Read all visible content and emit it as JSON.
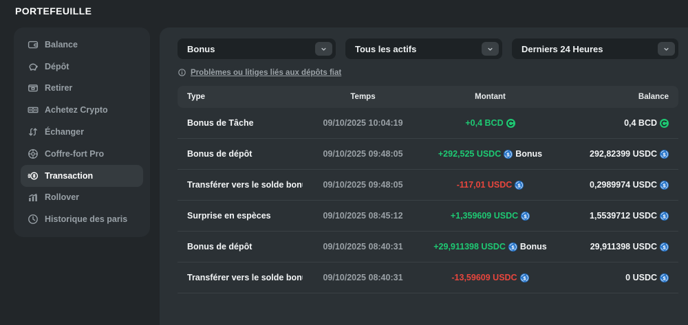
{
  "page": {
    "title": "PORTEFEUILLE"
  },
  "sidebar": {
    "items": [
      {
        "label": "Balance",
        "icon": "wallet-icon",
        "active": false
      },
      {
        "label": "Dépôt",
        "icon": "piggy-bank-icon",
        "active": false
      },
      {
        "label": "Retirer",
        "icon": "withdraw-icon",
        "active": false
      },
      {
        "label": "Achetez Crypto",
        "icon": "banknote-icon",
        "active": false
      },
      {
        "label": "Échanger",
        "icon": "swap-icon",
        "active": false
      },
      {
        "label": "Coffre-fort Pro",
        "icon": "vault-icon",
        "active": false
      },
      {
        "label": "Transaction",
        "icon": "coin-icon",
        "active": true
      },
      {
        "label": "Rollover",
        "icon": "chart-icon",
        "active": false
      },
      {
        "label": "Historique des paris",
        "icon": "clock-icon",
        "active": false
      }
    ]
  },
  "filters": {
    "type": {
      "value": "Bonus"
    },
    "asset": {
      "value": "Tous les actifs"
    },
    "time": {
      "value": "Derniers 24 Heures"
    }
  },
  "notice": {
    "link_text": "Problèmes ou litiges liés aux dépôts fiat"
  },
  "table": {
    "columns": {
      "type": "Type",
      "time": "Temps",
      "amount": "Montant",
      "balance": "Balance"
    },
    "rows": [
      {
        "type": "Bonus de Tâche",
        "time": "09/10/2025 10:04:19",
        "amount": "+0,4 BCD",
        "direction": "positive",
        "asset": "BCD",
        "tag": "",
        "balance": "0,4 BCD",
        "balance_asset": "BCD"
      },
      {
        "type": "Bonus de dépôt",
        "time": "09/10/2025 09:48:05",
        "amount": "+292,525 USDC",
        "direction": "positive",
        "asset": "USDC",
        "tag": "Bonus",
        "balance": "292,82399 USDC",
        "balance_asset": "USDC"
      },
      {
        "type": "Transférer vers le solde bonu",
        "time": "09/10/2025 09:48:05",
        "amount": "-117,01 USDC",
        "direction": "negative",
        "asset": "USDC",
        "tag": "",
        "balance": "0,2989974 USDC",
        "balance_asset": "USDC"
      },
      {
        "type": "Surprise en espèces",
        "time": "09/10/2025 08:45:12",
        "amount": "+1,359609 USDC",
        "direction": "positive",
        "asset": "USDC",
        "tag": "",
        "balance": "1,5539712 USDC",
        "balance_asset": "USDC"
      },
      {
        "type": "Bonus de dépôt",
        "time": "09/10/2025 08:40:31",
        "amount": "+29,911398 USDC",
        "direction": "positive",
        "asset": "USDC",
        "tag": "Bonus",
        "balance": "29,911398 USDC",
        "balance_asset": "USDC"
      },
      {
        "type": "Transférer vers le solde bonu",
        "time": "09/10/2025 08:40:31",
        "amount": "-13,59609 USDC",
        "direction": "negative",
        "asset": "USDC",
        "tag": "",
        "balance": "0 USDC",
        "balance_asset": "USDC"
      }
    ]
  },
  "colors": {
    "positive": "#1ec973",
    "negative": "#e8463d",
    "usdc_blue": "#2775ca",
    "bcd_green": "#1ec973"
  }
}
